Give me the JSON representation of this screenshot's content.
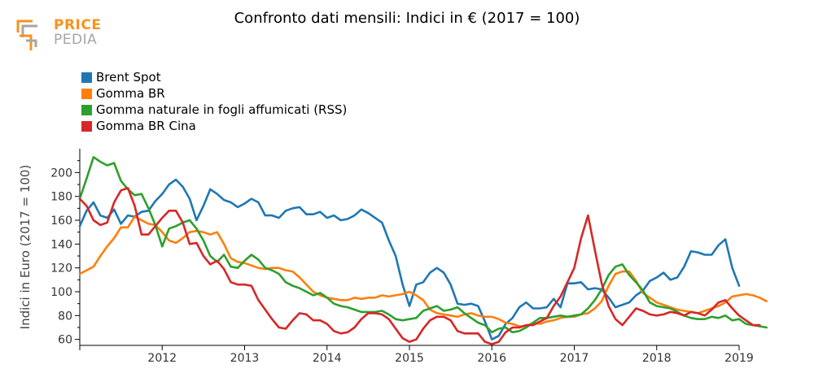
{
  "logo": {
    "line1": "PRICE",
    "line2": "PEDIA",
    "accent": "#f7931e",
    "muted": "#a6a6a6"
  },
  "title": "Confronto dati mensili: Indici in € (2017 = 100)",
  "legend": [
    {
      "label": "Brent Spot",
      "color": "#1f77b4"
    },
    {
      "label": "Gomma BR",
      "color": "#ff7f0e"
    },
    {
      "label": "Gomma naturale in fogli affumicati (RSS)",
      "color": "#2ca02c"
    },
    {
      "label": "Gomma BR Cina",
      "color": "#d62728"
    }
  ],
  "chart_data": {
    "type": "line",
    "ylabel": "Indici in Euro (2017 = 100)",
    "xlabel": "",
    "xlim": [
      2011.0,
      2019.0
    ],
    "ylim": [
      55,
      220
    ],
    "xticks": [
      2012,
      2013,
      2014,
      2015,
      2016,
      2017,
      2018,
      2019
    ],
    "xtick_labels": [
      "2012",
      "2013",
      "2014",
      "2015",
      "2016",
      "2017",
      "2018",
      "2019"
    ],
    "yticks": [
      60,
      80,
      100,
      120,
      140,
      160,
      180,
      200
    ],
    "ytick_labels": [
      "60",
      "80",
      "100",
      "120",
      "140",
      "160",
      "180",
      "200"
    ],
    "x_start": 2011.0,
    "x_step_months": 1,
    "series": [
      {
        "name": "Brent Spot",
        "color": "#1f77b4",
        "values": [
          155,
          168,
          175,
          164,
          162,
          169,
          157,
          164,
          163,
          167,
          168,
          176,
          182,
          190,
          194,
          188,
          178,
          160,
          172,
          186,
          182,
          177,
          175,
          171,
          174,
          178,
          175,
          164,
          164,
          162,
          168,
          170,
          171,
          165,
          165,
          167,
          162,
          164,
          160,
          161,
          164,
          169,
          166,
          162,
          158,
          143,
          130,
          106,
          88,
          106,
          108,
          116,
          120,
          116,
          106,
          90,
          89,
          90,
          88,
          75,
          60,
          63,
          73,
          78,
          87,
          91,
          86,
          86,
          87,
          94,
          87,
          107,
          107,
          108,
          102,
          103,
          102,
          95,
          87,
          89,
          91,
          97,
          101,
          109,
          112,
          116,
          110,
          112,
          121,
          134,
          133,
          131,
          131,
          139,
          144,
          120,
          105
        ]
      },
      {
        "name": "Gomma BR",
        "color": "#ff7f0e",
        "values": [
          115,
          118,
          121,
          130,
          138,
          145,
          154,
          154,
          163,
          160,
          157,
          156,
          150,
          143,
          141,
          145,
          150,
          151,
          150,
          148,
          150,
          140,
          128,
          125,
          124,
          122,
          120,
          119,
          120,
          120,
          118,
          117,
          112,
          106,
          100,
          97,
          95,
          94,
          93,
          93,
          95,
          94,
          95,
          95,
          97,
          96,
          97,
          98,
          100,
          97,
          93,
          85,
          82,
          81,
          80,
          79,
          81,
          82,
          80,
          79,
          79,
          77,
          74,
          73,
          71,
          71,
          74,
          73,
          75,
          76,
          78,
          79,
          79,
          81,
          82,
          86,
          92,
          105,
          115,
          117,
          117,
          109,
          99,
          95,
          91,
          89,
          87,
          85,
          84,
          83,
          82,
          84,
          86,
          88,
          91,
          96,
          97,
          98,
          97,
          95,
          92
        ]
      },
      {
        "name": "Gomma naturale in fogli affumicati (RSS)",
        "color": "#2ca02c",
        "values": [
          178,
          195,
          213,
          209,
          206,
          208,
          193,
          186,
          181,
          182,
          170,
          156,
          138,
          153,
          155,
          158,
          160,
          153,
          143,
          130,
          125,
          131,
          121,
          120,
          126,
          131,
          127,
          120,
          118,
          115,
          108,
          105,
          103,
          100,
          97,
          99,
          95,
          90,
          88,
          87,
          85,
          83,
          83,
          83,
          84,
          81,
          77,
          76,
          77,
          78,
          84,
          86,
          88,
          84,
          85,
          87,
          82,
          78,
          74,
          72,
          66,
          69,
          70,
          66,
          67,
          70,
          74,
          78,
          78,
          79,
          80,
          79,
          80,
          81,
          86,
          93,
          102,
          114,
          121,
          123,
          114,
          108,
          101,
          91,
          88,
          87,
          86,
          83,
          80,
          78,
          77,
          77,
          79,
          78,
          80,
          76,
          77,
          73,
          72,
          71,
          70
        ]
      },
      {
        "name": "Gomma BR Cina",
        "color": "#d62728",
        "values": [
          178,
          172,
          160,
          156,
          158,
          175,
          185,
          187,
          172,
          148,
          148,
          155,
          162,
          168,
          168,
          158,
          140,
          141,
          130,
          123,
          126,
          119,
          108,
          106,
          106,
          105,
          93,
          85,
          77,
          70,
          69,
          76,
          82,
          81,
          76,
          76,
          73,
          67,
          65,
          66,
          70,
          77,
          82,
          82,
          81,
          77,
          69,
          61,
          58,
          60,
          69,
          76,
          79,
          79,
          76,
          67,
          65,
          65,
          65,
          58,
          56,
          58,
          66,
          70,
          70,
          72,
          72,
          75,
          78,
          88,
          96,
          108,
          120,
          145,
          164,
          135,
          107,
          88,
          77,
          72,
          79,
          86,
          84,
          81,
          80,
          81,
          83,
          82,
          80,
          83,
          82,
          80,
          85,
          91,
          93,
          86,
          80,
          76,
          72,
          72
        ]
      }
    ]
  }
}
